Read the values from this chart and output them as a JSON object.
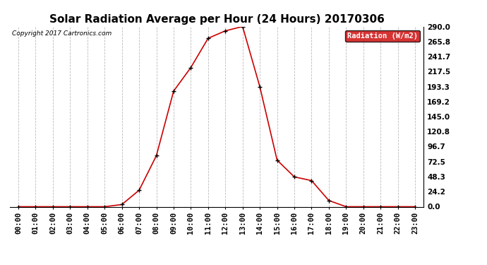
{
  "title": "Solar Radiation Average per Hour (24 Hours) 20170306",
  "copyright_text": "Copyright 2017 Cartronics.com",
  "legend_label": "Radiation (W/m2)",
  "hours": [
    0,
    1,
    2,
    3,
    4,
    5,
    6,
    7,
    8,
    9,
    10,
    11,
    12,
    13,
    14,
    15,
    16,
    17,
    18,
    19,
    20,
    21,
    22,
    23
  ],
  "x_labels": [
    "00:00",
    "01:00",
    "02:00",
    "03:00",
    "04:00",
    "05:00",
    "06:00",
    "07:00",
    "08:00",
    "09:00",
    "10:00",
    "11:00",
    "12:00",
    "13:00",
    "14:00",
    "15:00",
    "16:00",
    "17:00",
    "18:00",
    "19:00",
    "20:00",
    "21:00",
    "22:00",
    "23:00"
  ],
  "radiation": [
    0.0,
    0.0,
    0.0,
    0.0,
    0.0,
    0.0,
    3.5,
    26.5,
    82.0,
    186.0,
    224.0,
    271.0,
    283.0,
    290.0,
    193.0,
    75.0,
    48.0,
    42.0,
    10.0,
    0.0,
    0.0,
    0.0,
    0.0,
    0.0
  ],
  "y_ticks": [
    0.0,
    24.2,
    48.3,
    72.5,
    96.7,
    120.8,
    145.0,
    169.2,
    193.3,
    217.5,
    241.7,
    265.8,
    290.0
  ],
  "line_color": "#cc0000",
  "marker_color": "#000000",
  "bg_color": "#ffffff",
  "grid_color": "#bbbbbb",
  "legend_bg": "#cc0000",
  "legend_text_color": "#ffffff",
  "title_fontsize": 11,
  "tick_fontsize": 7.5,
  "ylim": [
    0.0,
    290.0
  ]
}
